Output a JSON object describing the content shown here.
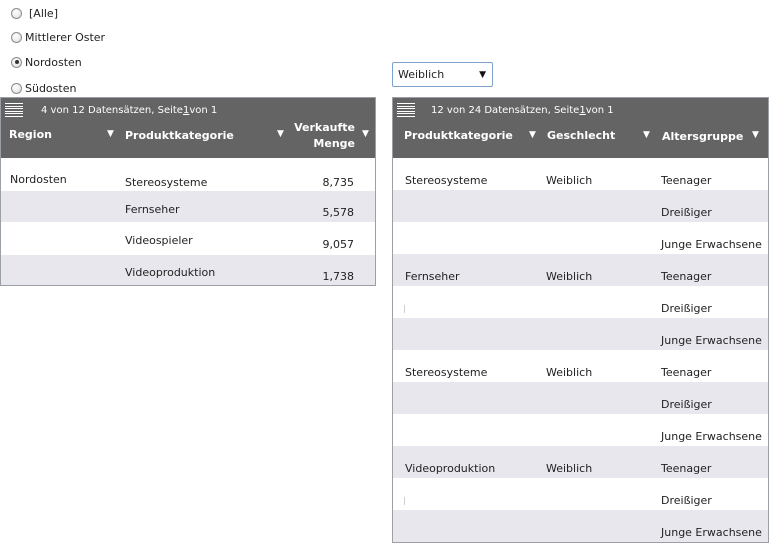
{
  "region_filter": {
    "options": [
      {
        "label": "[Alle]",
        "checked": false
      },
      {
        "label": "Mittlerer Oster",
        "checked": false
      },
      {
        "label": "Nordosten",
        "checked": true
      },
      {
        "label": "Südosten",
        "checked": false
      }
    ]
  },
  "gender_dropdown": {
    "selected": "Weiblich",
    "arrow": "▼"
  },
  "table1": {
    "pager": {
      "prefix": "4 von 12  Datensätzen, Seite ",
      "page": "1",
      "suffix": " von 1"
    },
    "columns": {
      "region": "Region",
      "product_category": "Produktkategorie",
      "quantity_line1": "Verkaufte",
      "quantity_line2": "Menge"
    },
    "sort_arrow": "▼",
    "rows": [
      {
        "region": "Nordosten",
        "category": "Stereosysteme",
        "quantity": "8,735"
      },
      {
        "region": "",
        "category": "Fernseher",
        "quantity": "5,578"
      },
      {
        "region": "",
        "category": "Videospieler",
        "quantity": "9,057"
      },
      {
        "region": "",
        "category": "Videoproduktion",
        "quantity": "1,738"
      }
    ]
  },
  "table2": {
    "pager": {
      "prefix": "12  von  24  Datensätzen, Seite ",
      "page": "1",
      "suffix": " von 1"
    },
    "columns": {
      "product_category": "Produktkategorie",
      "gender": "Geschlecht",
      "age_group": "Altersgruppe"
    },
    "sort_arrow": "▼",
    "rows": [
      {
        "category": "Stereosysteme",
        "gender": "Weiblich",
        "age": "Teenager"
      },
      {
        "category": "",
        "gender": "",
        "age": "Dreißiger"
      },
      {
        "category": "",
        "gender": "",
        "age": "Junge Erwachsene"
      },
      {
        "category": "Fernseher",
        "gender": "Weiblich",
        "age": "Teenager"
      },
      {
        "category": "",
        "gender": "",
        "age": "Dreißiger"
      },
      {
        "category": "",
        "gender": "",
        "age": "Junge Erwachsene"
      },
      {
        "category": "Stereosysteme",
        "gender": "Weiblich",
        "age": "Teenager"
      },
      {
        "category": "",
        "gender": "",
        "age": "Dreißiger"
      },
      {
        "category": "",
        "gender": "",
        "age": "Junge Erwachsene"
      },
      {
        "category": "Videoproduktion",
        "gender": "Weiblich",
        "age": "Teenager"
      },
      {
        "category": "",
        "gender": "",
        "age": "Dreißiger"
      },
      {
        "category": "",
        "gender": "",
        "age": "Junge Erwachsene"
      }
    ]
  }
}
